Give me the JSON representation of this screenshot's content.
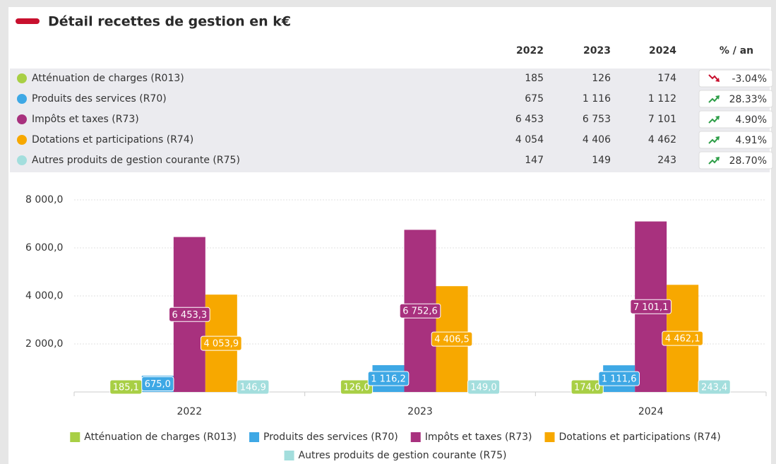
{
  "title": "Détail recettes de gestion en k€",
  "table": {
    "columns": [
      "2022",
      "2023",
      "2024",
      "% / an"
    ],
    "rows": [
      {
        "label": "Atténuation de charges (R013)",
        "color": "#a8cf45",
        "cells": [
          "185",
          "126",
          "174"
        ],
        "pct": "-3.04%",
        "trend": "down",
        "pct_color": "#c8102e"
      },
      {
        "label": "Produits des services (R70)",
        "color": "#3ea8e5",
        "cells": [
          "675",
          "1 116",
          "1 112"
        ],
        "pct": "28.33%",
        "trend": "up",
        "pct_color": "#2e9e48"
      },
      {
        "label": "Impôts et taxes (R73)",
        "color": "#a8317e",
        "cells": [
          "6 453",
          "6 753",
          "7 101"
        ],
        "pct": "4.90%",
        "trend": "up",
        "pct_color": "#2e9e48"
      },
      {
        "label": "Dotations et participations (R74)",
        "color": "#f7a800",
        "cells": [
          "4 054",
          "4 406",
          "4 462"
        ],
        "pct": "4.91%",
        "trend": "up",
        "pct_color": "#2e9e48"
      },
      {
        "label": "Autres produits de gestion courante (R75)",
        "color": "#a3dedd",
        "cells": [
          "147",
          "149",
          "243"
        ],
        "pct": "28.70%",
        "trend": "up",
        "pct_color": "#2e9e48"
      }
    ]
  },
  "chart_data": {
    "type": "bar",
    "categories": [
      "2022",
      "2023",
      "2024"
    ],
    "ylim": [
      0,
      8000
    ],
    "yticks": [
      {
        "value": 2000,
        "label": "2 000,0"
      },
      {
        "value": 4000,
        "label": "4 000,0"
      },
      {
        "value": 6000,
        "label": "6 000,0"
      },
      {
        "value": 8000,
        "label": "8 000,0"
      }
    ],
    "grid": true,
    "legend": "bottom",
    "series": [
      {
        "name": "Atténuation de charges (R013)",
        "color": "#a8cf45",
        "values": [
          185.1,
          126.0,
          174.0
        ],
        "value_labels": [
          "185,1",
          "126,0",
          "174,0"
        ]
      },
      {
        "name": "Produits des services (R70)",
        "color": "#3ea8e5",
        "values": [
          675.0,
          1116.2,
          1111.6
        ],
        "value_labels": [
          "675,0",
          "1 116,2",
          "1 111,6"
        ]
      },
      {
        "name": "Impôts et taxes (R73)",
        "color": "#a8317e",
        "values": [
          6453.3,
          6752.6,
          7101.1
        ],
        "value_labels": [
          "6 453,3",
          "6 752,6",
          "7 101,1"
        ]
      },
      {
        "name": "Dotations et participations (R74)",
        "color": "#f7a800",
        "values": [
          4053.9,
          4406.5,
          4462.1
        ],
        "value_labels": [
          "4 053,9",
          "4 406,5",
          "4 462,1"
        ]
      },
      {
        "name": "Autres produits de gestion courante (R75)",
        "color": "#a3dedd",
        "values": [
          146.9,
          149.0,
          243.4
        ],
        "value_labels": [
          "146,9",
          "149,0",
          "243,4"
        ]
      }
    ]
  }
}
